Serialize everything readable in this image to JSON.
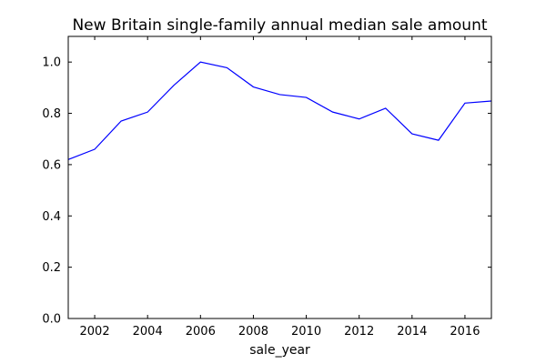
{
  "chart_data": {
    "type": "line",
    "title": "New Britain single-family annual median sale amount",
    "xlabel": "sale_year",
    "ylabel": "",
    "xlim": [
      2001,
      2017
    ],
    "ylim": [
      0.0,
      1.1
    ],
    "xticks": [
      2002,
      2004,
      2006,
      2008,
      2010,
      2012,
      2014,
      2016
    ],
    "xtick_labels": [
      "2002",
      "2004",
      "2006",
      "2008",
      "2010",
      "2012",
      "2014",
      "2016"
    ],
    "yticks": [
      0.0,
      0.2,
      0.4,
      0.6,
      0.8,
      1.0
    ],
    "ytick_labels": [
      "0.0",
      "0.2",
      "0.4",
      "0.6",
      "0.8",
      "1.0"
    ],
    "grid": false,
    "legend": "none",
    "series": [
      {
        "color": "#0000ff",
        "x": [
          2001,
          2002,
          2003,
          2004,
          2005,
          2006,
          2007,
          2008,
          2009,
          2010,
          2011,
          2012,
          2013,
          2014,
          2015,
          2016,
          2017
        ],
        "y": [
          0.62,
          0.66,
          0.77,
          0.805,
          0.91,
          1.0,
          0.978,
          0.903,
          0.873,
          0.862,
          0.805,
          0.778,
          0.82,
          0.72,
          0.695,
          0.84,
          0.848
        ]
      }
    ]
  }
}
